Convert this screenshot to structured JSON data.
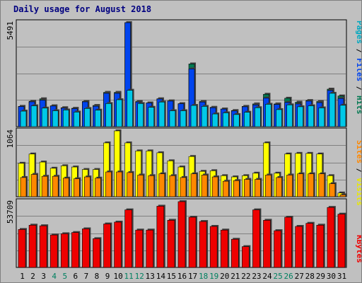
{
  "title": "Daily usage for August 2018",
  "colors": {
    "background": "#c0c0c0",
    "plot_background": "#c0c0c0",
    "grid": "#808080",
    "title": "#000080",
    "pages": "#00c8e8",
    "files": "#0044ee",
    "hits": "#007850",
    "visits": "#ffff00",
    "sites": "#ff8800",
    "kbytes": "#ee0000",
    "day_label": "#000000",
    "weekend_label": "#008060"
  },
  "legends": {
    "top": [
      {
        "text": "Pages",
        "color": "#00a8c0"
      },
      {
        "text": " / ",
        "color": "#000000"
      },
      {
        "text": "Files",
        "color": "#0044ee"
      },
      {
        "text": " / ",
        "color": "#000000"
      },
      {
        "text": "Hits",
        "color": "#007850"
      }
    ],
    "middle": [
      {
        "text": "Sites",
        "color": "#ff8800"
      },
      {
        "text": " / ",
        "color": "#000000"
      },
      {
        "text": "Visits",
        "color": "#e8e800"
      }
    ],
    "bottom": [
      {
        "text": "KBytes",
        "color": "#ee0000"
      }
    ]
  },
  "chart_data": {
    "type": "bar",
    "x": [
      "1",
      "2",
      "3",
      "4",
      "5",
      "6",
      "7",
      "8",
      "9",
      "10",
      "11",
      "12",
      "13",
      "14",
      "15",
      "16",
      "17",
      "18",
      "19",
      "20",
      "21",
      "22",
      "23",
      "24",
      "25",
      "26",
      "27",
      "28",
      "29",
      "30",
      "31"
    ],
    "weekend_days": [
      "4",
      "5",
      "11",
      "12",
      "18",
      "19",
      "25",
      "26"
    ],
    "panels": [
      {
        "name": "top",
        "ymax_label": "5491",
        "ymax": 5491,
        "series": [
          {
            "name": "Hits",
            "values": [
              1070,
              1340,
              1470,
              1100,
              1000,
              970,
              1330,
              1120,
              1810,
              1810,
              5491,
              1330,
              1250,
              1470,
              1360,
              1210,
              3310,
              1330,
              1020,
              930,
              850,
              1070,
              1200,
              1710,
              1200,
              1500,
              1290,
              1380,
              1330,
              1980,
              1620
            ]
          },
          {
            "name": "Files",
            "values": [
              1060,
              1310,
              1400,
              1090,
              980,
              950,
              1310,
              1080,
              1760,
              1760,
              5491,
              1300,
              1250,
              1460,
              1350,
              1210,
              3050,
              1300,
              1000,
              930,
              830,
              1050,
              1150,
              1510,
              1170,
              1280,
              1200,
              1350,
              1270,
              1910,
              1490
            ]
          },
          {
            "name": "Pages",
            "values": [
              820,
              1100,
              980,
              840,
              880,
              770,
              960,
              870,
              1220,
              1420,
              1920,
              1220,
              1020,
              1300,
              840,
              840,
              1120,
              1070,
              670,
              730,
              640,
              760,
              1000,
              1180,
              900,
              1150,
              1050,
              1100,
              990,
              1760,
              1130
            ]
          }
        ]
      },
      {
        "name": "middle",
        "ymax_label": "1064",
        "ymax": 1064,
        "series": [
          {
            "name": "Visits",
            "values": [
              540,
              690,
              560,
              460,
              500,
              480,
              440,
              440,
              870,
              1064,
              870,
              740,
              740,
              710,
              580,
              480,
              650,
              410,
              420,
              340,
              320,
              340,
              380,
              870,
              380,
              690,
              700,
              700,
              690,
              340,
              60
            ]
          },
          {
            "name": "Sites",
            "values": [
              310,
              360,
              330,
              330,
              300,
              290,
              320,
              300,
              400,
              400,
              390,
              350,
              340,
              370,
              340,
              310,
              370,
              350,
              320,
              250,
              260,
              280,
              280,
              350,
              310,
              350,
              370,
              370,
              370,
              210,
              30
            ]
          }
        ]
      },
      {
        "name": "bottom",
        "ymax_label": "53709",
        "ymax": 53709,
        "series": [
          {
            "name": "KBytes",
            "values": [
              31000,
              34500,
              34000,
              26500,
              27500,
              28500,
              31500,
              23500,
              35500,
              37000,
              47000,
              30500,
              30500,
              50000,
              38500,
              53709,
              41000,
              37500,
              33500,
              30500,
              23000,
              17000,
              47000,
              38500,
              30000,
              41000,
              33500,
              36000,
              34500,
              49000,
              43500
            ]
          }
        ]
      }
    ],
    "grid": true
  }
}
